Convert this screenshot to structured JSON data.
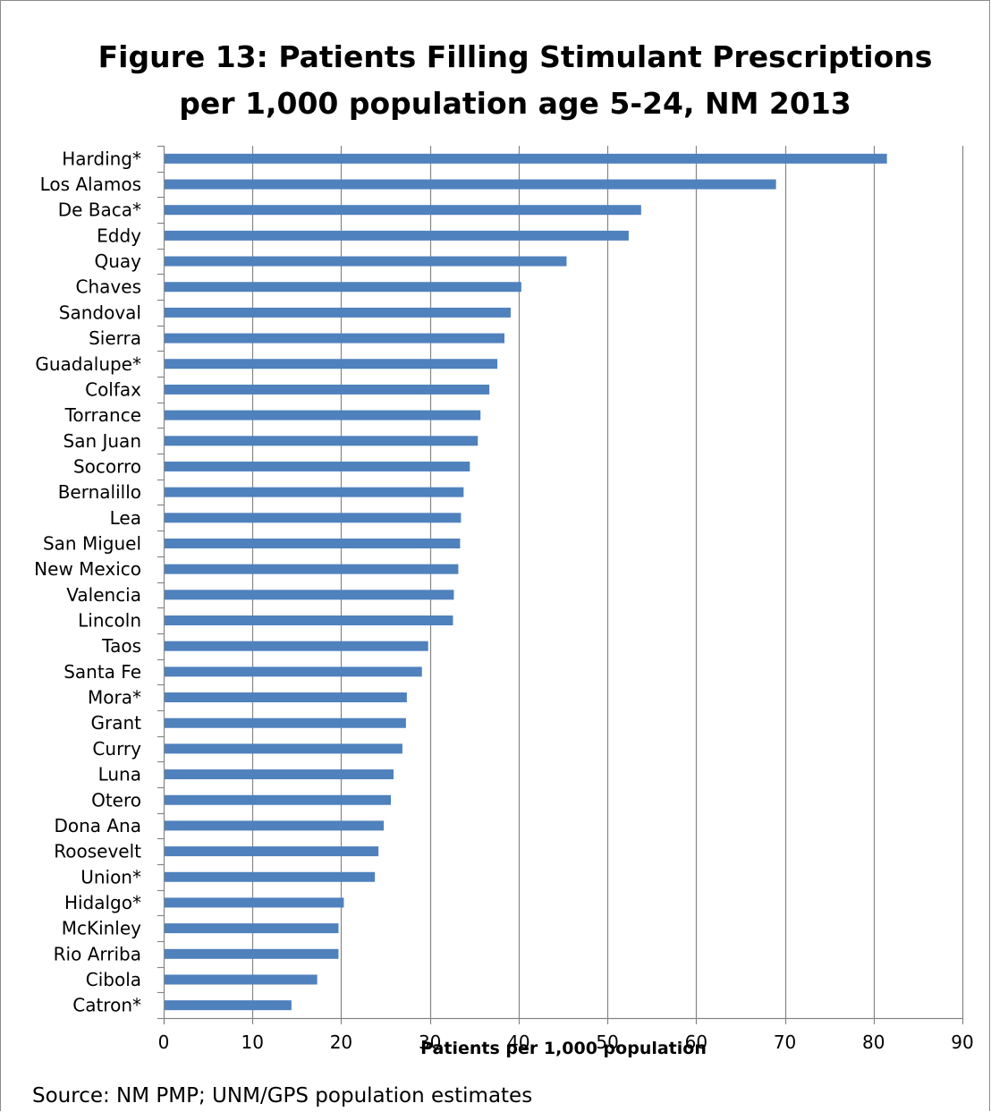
{
  "chart_data": {
    "type": "bar",
    "orientation": "horizontal",
    "title": [
      "Figure 13: Patients Filling Stimulant Prescriptions",
      "per 1,000 population age 5-24, NM 2013"
    ],
    "xlabel": "Patients per 1,000 population",
    "ylabel": "",
    "xlim": [
      0,
      90
    ],
    "xticks": [
      0,
      10,
      20,
      30,
      40,
      50,
      60,
      70,
      80,
      90
    ],
    "grid": "vertical",
    "bar_color": "#4f81bd",
    "categories": [
      "Harding*",
      "Los Alamos",
      "De Baca*",
      "Eddy",
      "Quay",
      "Chaves",
      "Sandoval",
      "Sierra",
      "Guadalupe*",
      "Colfax",
      "Torrance",
      "San Juan",
      "Socorro",
      "Bernalillo",
      "Lea",
      "San Miguel",
      "New Mexico",
      "Valencia",
      "Lincoln",
      "Taos",
      "Santa Fe",
      "Mora*",
      "Grant",
      "Curry",
      "Luna",
      "Otero",
      "Dona Ana",
      "Roosevelt",
      "Union*",
      "Hidalgo*",
      "McKinley",
      "Rio Arriba",
      "Cibola",
      "Catron*"
    ],
    "values": [
      81.5,
      69.0,
      53.8,
      52.4,
      45.4,
      40.3,
      39.1,
      38.4,
      37.6,
      36.7,
      35.7,
      35.4,
      34.5,
      33.8,
      33.5,
      33.4,
      33.2,
      32.7,
      32.6,
      29.8,
      29.1,
      27.4,
      27.3,
      26.9,
      25.9,
      25.6,
      24.8,
      24.2,
      23.8,
      20.3,
      19.7,
      19.7,
      17.3,
      14.4
    ]
  },
  "source": "Source:  NM PMP; UNM/GPS population estimates"
}
